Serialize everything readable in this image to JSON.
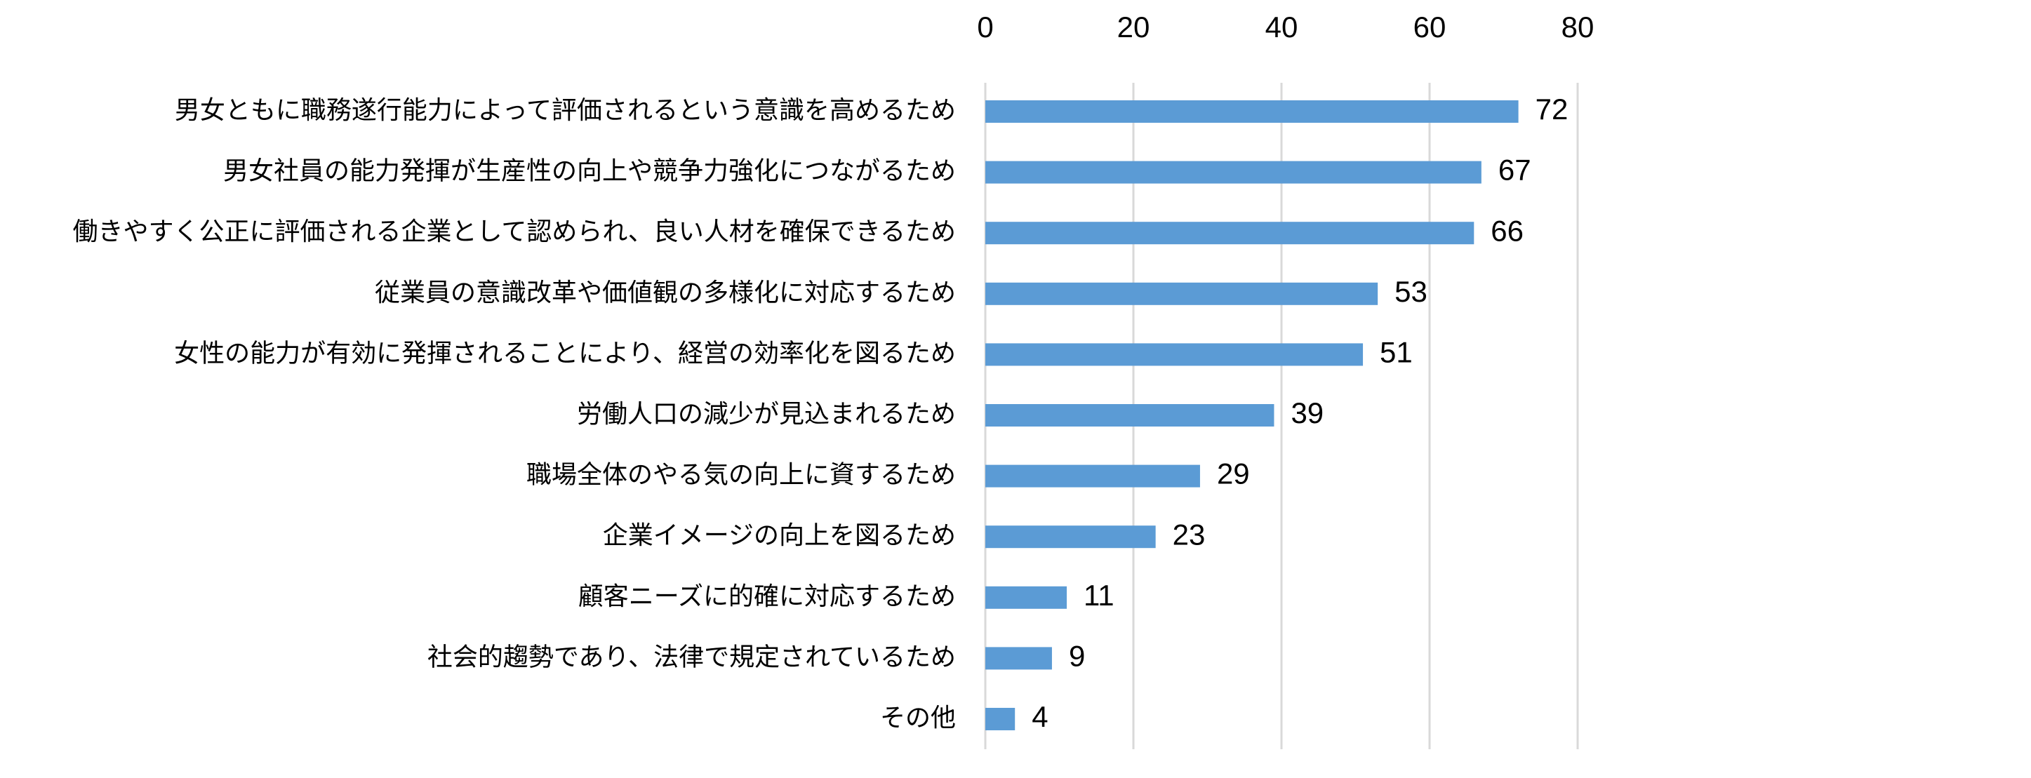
{
  "chart_data": {
    "type": "bar",
    "orientation": "horizontal",
    "title": "",
    "xlabel": "",
    "ylabel": "",
    "xlim": [
      0,
      80
    ],
    "ticks": [
      0,
      20,
      40,
      60,
      80
    ],
    "grid": true,
    "legend": "none",
    "bar_color": "#5b9bd5",
    "grid_color": "#d9d9d9",
    "categories": [
      "男女ともに職務遂行能力によって評価されるという意識を高めるため",
      "男女社員の能力発揮が生産性の向上や競争力強化につながるため",
      "働きやすく公正に評価される企業として認められ、良い人材を確保できるため",
      "従業員の意識改革や価値観の多様化に対応するため",
      "女性の能力が有効に発揮されることにより、経営の効率化を図るため",
      "労働人口の減少が見込まれるため",
      "職場全体のやる気の向上に資するため",
      "企業イメージの向上を図るため",
      "顧客ニーズに的確に対応するため",
      "社会的趨勢であり、法律で規定されているため",
      "その他"
    ],
    "values": [
      72,
      67,
      66,
      53,
      51,
      39,
      29,
      23,
      11,
      9,
      4
    ]
  }
}
